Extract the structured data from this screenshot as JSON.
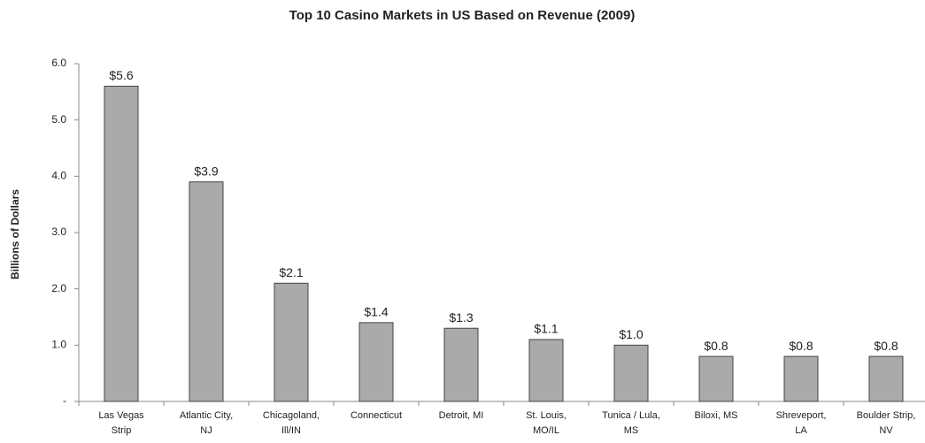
{
  "chart_data": {
    "type": "bar",
    "title": "Top 10 Casino Markets in US Based on Revenue (2009)",
    "y_label": "Billions of Dollars",
    "categories": [
      [
        "Las Vegas",
        "Strip"
      ],
      [
        "Atlantic City,",
        "NJ"
      ],
      [
        "Chicagoland,",
        "Ill/IN"
      ],
      [
        "Connecticut"
      ],
      [
        "Detroit, MI"
      ],
      [
        "St. Louis,",
        "MO/IL"
      ],
      [
        "Tunica / Lula,",
        "MS"
      ],
      [
        "Biloxi, MS"
      ],
      [
        "Shreveport,",
        "LA"
      ],
      [
        "Boulder Strip,",
        "NV"
      ]
    ],
    "values": [
      5.6,
      3.9,
      2.1,
      1.4,
      1.3,
      1.1,
      1.0,
      0.8,
      0.8,
      0.8
    ],
    "value_labels": [
      "$5.6",
      "$3.9",
      "$2.1",
      "$1.4",
      "$1.3",
      "$1.1",
      "$1.0",
      "$0.8",
      "$0.8",
      "$0.8"
    ],
    "color": "#aaaaaa",
    "ylim": [
      0,
      6
    ],
    "yticks": [
      {
        "value": 0,
        "label": "-"
      },
      {
        "value": 1,
        "label": "1.0"
      },
      {
        "value": 2,
        "label": "2.0"
      },
      {
        "value": 3,
        "label": "3.0"
      },
      {
        "value": 4,
        "label": "4.0"
      },
      {
        "value": 5,
        "label": "5.0"
      },
      {
        "value": 6,
        "label": "6.0"
      }
    ]
  }
}
